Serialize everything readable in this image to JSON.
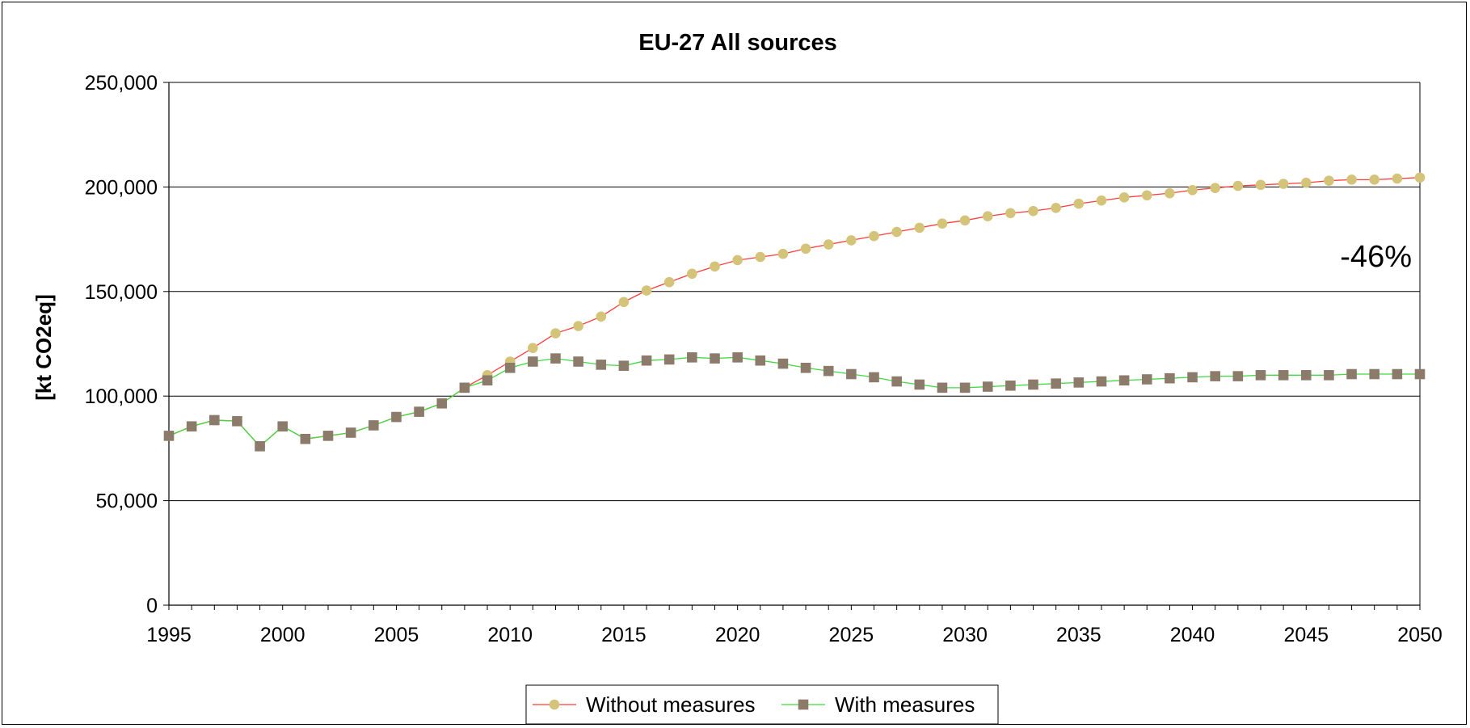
{
  "chart_data": {
    "type": "line",
    "title": "EU-27 All sources",
    "xlabel": "",
    "ylabel": "[kt CO2eq]",
    "ylim": [
      0,
      250000
    ],
    "xlim": [
      1995,
      2050
    ],
    "y_ticks": [
      "0",
      "50,000",
      "100,000",
      "150,000",
      "200,000",
      "250,000"
    ],
    "x_ticks": [
      "1995",
      "2000",
      "2005",
      "2010",
      "2015",
      "2020",
      "2025",
      "2030",
      "2035",
      "2040",
      "2045",
      "2050"
    ],
    "grid": "horizontal",
    "legend_position": "bottom",
    "annotation": "-46%",
    "x": [
      1995,
      1996,
      1997,
      1998,
      1999,
      2000,
      2001,
      2002,
      2003,
      2004,
      2005,
      2006,
      2007,
      2008,
      2009,
      2010,
      2011,
      2012,
      2013,
      2014,
      2015,
      2016,
      2017,
      2018,
      2019,
      2020,
      2021,
      2022,
      2023,
      2024,
      2025,
      2026,
      2027,
      2028,
      2029,
      2030,
      2031,
      2032,
      2033,
      2034,
      2035,
      2036,
      2037,
      2038,
      2039,
      2040,
      2041,
      2042,
      2043,
      2044,
      2045,
      2046,
      2047,
      2048,
      2049,
      2050
    ],
    "series": [
      {
        "name": "Without measures",
        "line_color": "#ff3b3b",
        "marker": "circle",
        "marker_color": "#d4c47a",
        "values": [
          81000,
          85500,
          88500,
          88000,
          76000,
          85500,
          79500,
          81000,
          82500,
          86000,
          90000,
          92500,
          96500,
          104000,
          110000,
          116500,
          123000,
          130000,
          133500,
          138000,
          145000,
          150500,
          154500,
          158500,
          162000,
          165000,
          166500,
          168000,
          170500,
          172500,
          174500,
          176500,
          178500,
          180500,
          182500,
          184000,
          186000,
          187500,
          188500,
          190000,
          192000,
          193500,
          195000,
          196000,
          197000,
          198500,
          199500,
          200500,
          201000,
          201500,
          202000,
          203000,
          203500,
          203500,
          204000,
          204500
        ]
      },
      {
        "name": "With measures",
        "line_color": "#3ddc3d",
        "marker": "square",
        "marker_color": "#8c7b6b",
        "values": [
          81000,
          85500,
          88500,
          88000,
          76000,
          85500,
          79500,
          81000,
          82500,
          86000,
          90000,
          92500,
          96500,
          104000,
          107500,
          113500,
          116500,
          118000,
          116500,
          115000,
          114500,
          117000,
          117500,
          118500,
          118000,
          118500,
          117000,
          115500,
          113500,
          112000,
          110500,
          109000,
          107000,
          105500,
          104000,
          104000,
          104500,
          105000,
          105500,
          106000,
          106500,
          107000,
          107500,
          108000,
          108500,
          109000,
          109500,
          109500,
          110000,
          110000,
          110000,
          110000,
          110500,
          110500,
          110500,
          110500
        ]
      }
    ]
  }
}
